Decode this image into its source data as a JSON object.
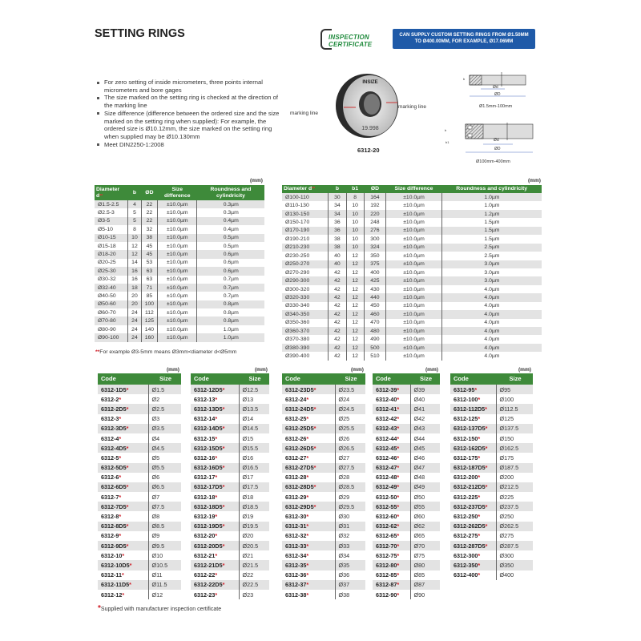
{
  "title": "SETTING RINGS",
  "certificate_logo": [
    "INSPECTION",
    "CERTIFICATE"
  ],
  "custom_notice": [
    "CAN SUPPLY CUSTOM SETTING RINGS FROM Ø1.50MM",
    "TO Ø400.00MM, FOR EXAMPLE, Ø17.06MM"
  ],
  "bullets": [
    "For zero setting of inside micrometers, three points internal micrometers and bore gages",
    "The size marked on the setting ring is checked at the direction of the marking line",
    "Size difference (difference between the ordered size and the size marked on the setting ring when supplied): For example, the ordered size is Ø10.12mm, the size marked on the setting ring when supplied may be Ø10.130mm",
    "Meet DIN2250-1:2008"
  ],
  "product": {
    "brand": "INSIZE",
    "marking": "19.998",
    "marking_line": "marking line",
    "code": "6312-20"
  },
  "diagrams": [
    {
      "caption": "Ø1.5mm-100mm",
      "d": "Ød",
      "D": "ØD",
      "b": "b"
    },
    {
      "caption": "Ø100mm-400mm",
      "d": "Ød",
      "D": "ØD",
      "b": "b",
      "b1": "b1"
    }
  ],
  "unit": "(mm)",
  "accent_colors": {
    "header_green": "#3e8a3a",
    "notice_blue": "#1f5aa8",
    "star_red": "#d0202a"
  },
  "spec_table_small": {
    "headers": [
      "Diameter d",
      "b",
      "ØD",
      "Size difference",
      "Roundness and cylindricity"
    ],
    "header_mark": "**",
    "rows": [
      [
        "Ø1.5-2.5",
        "4",
        "22",
        "±10.0µm",
        "0.3µm"
      ],
      [
        "Ø2.5-3",
        "5",
        "22",
        "±10.0µm",
        "0.3µm"
      ],
      [
        "Ø3-5",
        "5",
        "22",
        "±10.0µm",
        "0.4µm"
      ],
      [
        "Ø5-10",
        "8",
        "32",
        "±10.0µm",
        "0.4µm"
      ],
      [
        "Ø10-15",
        "10",
        "38",
        "±10.0µm",
        "0.5µm"
      ],
      [
        "Ø15-18",
        "12",
        "45",
        "±10.0µm",
        "0.5µm"
      ],
      [
        "Ø18-20",
        "12",
        "45",
        "±10.0µm",
        "0.6µm"
      ],
      [
        "Ø20-25",
        "14",
        "53",
        "±10.0µm",
        "0.6µm"
      ],
      [
        "Ø25-30",
        "16",
        "63",
        "±10.0µm",
        "0.6µm"
      ],
      [
        "Ø30-32",
        "16",
        "63",
        "±10.0µm",
        "0.7µm"
      ],
      [
        "Ø32-40",
        "18",
        "71",
        "±10.0µm",
        "0.7µm"
      ],
      [
        "Ø40-50",
        "20",
        "85",
        "±10.0µm",
        "0.7µm"
      ],
      [
        "Ø50-60",
        "20",
        "100",
        "±10.0µm",
        "0.8µm"
      ],
      [
        "Ø60-70",
        "24",
        "112",
        "±10.0µm",
        "0.8µm"
      ],
      [
        "Ø70-80",
        "24",
        "125",
        "±10.0µm",
        "0.8µm"
      ],
      [
        "Ø80-90",
        "24",
        "140",
        "±10.0µm",
        "1.0µm"
      ],
      [
        "Ø90-100",
        "24",
        "160",
        "±10.0µm",
        "1.0µm"
      ]
    ],
    "footnote_mark": "**",
    "footnote": "For example Ø3-5mm means Ø3mm<diameter d<Ø5mm"
  },
  "spec_table_large": {
    "headers": [
      "Diameter d",
      "b",
      "b1",
      "ØD",
      "Size difference",
      "Roundness and cylindricity"
    ],
    "header_mark": "**",
    "rows": [
      [
        "Ø100-110",
        "30",
        "8",
        "164",
        "±10.0µm",
        "1.0µm"
      ],
      [
        "Ø110-130",
        "34",
        "10",
        "192",
        "±10.0µm",
        "1.0µm"
      ],
      [
        "Ø130-150",
        "34",
        "10",
        "220",
        "±10.0µm",
        "1.2µm"
      ],
      [
        "Ø150-170",
        "36",
        "10",
        "248",
        "±10.0µm",
        "1.5µm"
      ],
      [
        "Ø170-190",
        "36",
        "10",
        "276",
        "±10.0µm",
        "1.5µm"
      ],
      [
        "Ø190-210",
        "38",
        "10",
        "300",
        "±10.0µm",
        "1.5µm"
      ],
      [
        "Ø210-230",
        "38",
        "10",
        "324",
        "±10.0µm",
        "2.5µm"
      ],
      [
        "Ø230-250",
        "40",
        "12",
        "350",
        "±10.0µm",
        "2.5µm"
      ],
      [
        "Ø250-270",
        "40",
        "12",
        "375",
        "±10.0µm",
        "3.0µm"
      ],
      [
        "Ø270-290",
        "42",
        "12",
        "400",
        "±10.0µm",
        "3.0µm"
      ],
      [
        "Ø290-300",
        "42",
        "12",
        "425",
        "±10.0µm",
        "3.0µm"
      ],
      [
        "Ø300-320",
        "42",
        "12",
        "430",
        "±10.0µm",
        "4.0µm"
      ],
      [
        "Ø320-330",
        "42",
        "12",
        "440",
        "±10.0µm",
        "4.0µm"
      ],
      [
        "Ø330-340",
        "42",
        "12",
        "450",
        "±10.0µm",
        "4.0µm"
      ],
      [
        "Ø340-350",
        "42",
        "12",
        "460",
        "±10.0µm",
        "4.0µm"
      ],
      [
        "Ø350-360",
        "42",
        "12",
        "470",
        "±10.0µm",
        "4.0µm"
      ],
      [
        "Ø360-370",
        "42",
        "12",
        "480",
        "±10.0µm",
        "4.0µm"
      ],
      [
        "Ø370-380",
        "42",
        "12",
        "490",
        "±10.0µm",
        "4.0µm"
      ],
      [
        "Ø380-390",
        "42",
        "12",
        "500",
        "±10.0µm",
        "4.0µm"
      ],
      [
        "Ø390-400",
        "42",
        "12",
        "510",
        "±10.0µm",
        "4.0µm"
      ]
    ]
  },
  "code_tables": {
    "headers": [
      "Code",
      "Size"
    ],
    "star": "*",
    "tables": [
      [
        [
          "6312-1D5",
          "Ø1.5"
        ],
        [
          "6312-2",
          "Ø2"
        ],
        [
          "6312-2D5",
          "Ø2.5"
        ],
        [
          "6312-3",
          "Ø3"
        ],
        [
          "6312-3D5",
          "Ø3.5"
        ],
        [
          "6312-4",
          "Ø4"
        ],
        [
          "6312-4D5",
          "Ø4.5"
        ],
        [
          "6312-5",
          "Ø5"
        ],
        [
          "6312-5D5",
          "Ø5.5"
        ],
        [
          "6312-6",
          "Ø6"
        ],
        [
          "6312-6D5",
          "Ø6.5"
        ],
        [
          "6312-7",
          "Ø7"
        ],
        [
          "6312-7D5",
          "Ø7.5"
        ],
        [
          "6312-8",
          "Ø8"
        ],
        [
          "6312-8D5",
          "Ø8.5"
        ],
        [
          "6312-9",
          "Ø9"
        ],
        [
          "6312-9D5",
          "Ø9.5"
        ],
        [
          "6312-10",
          "Ø10"
        ],
        [
          "6312-10D5",
          "Ø10.5"
        ],
        [
          "6312-11",
          "Ø11"
        ],
        [
          "6312-11D5",
          "Ø11.5"
        ],
        [
          "6312-12",
          "Ø12"
        ]
      ],
      [
        [
          "6312-12D5",
          "Ø12.5"
        ],
        [
          "6312-13",
          "Ø13"
        ],
        [
          "6312-13D5",
          "Ø13.5"
        ],
        [
          "6312-14",
          "Ø14"
        ],
        [
          "6312-14D5",
          "Ø14.5"
        ],
        [
          "6312-15",
          "Ø15"
        ],
        [
          "6312-15D5",
          "Ø15.5"
        ],
        [
          "6312-16",
          "Ø16"
        ],
        [
          "6312-16D5",
          "Ø16.5"
        ],
        [
          "6312-17",
          "Ø17"
        ],
        [
          "6312-17D5",
          "Ø17.5"
        ],
        [
          "6312-18",
          "Ø18"
        ],
        [
          "6312-18D5",
          "Ø18.5"
        ],
        [
          "6312-19",
          "Ø19"
        ],
        [
          "6312-19D5",
          "Ø19.5"
        ],
        [
          "6312-20",
          "Ø20"
        ],
        [
          "6312-20D5",
          "Ø20.5"
        ],
        [
          "6312-21",
          "Ø21"
        ],
        [
          "6312-21D5",
          "Ø21.5"
        ],
        [
          "6312-22",
          "Ø22"
        ],
        [
          "6312-22D5",
          "Ø22.5"
        ],
        [
          "6312-23",
          "Ø23"
        ]
      ],
      [
        [
          "6312-23D5",
          "Ø23.5"
        ],
        [
          "6312-24",
          "Ø24"
        ],
        [
          "6312-24D5",
          "Ø24.5"
        ],
        [
          "6312-25",
          "Ø25"
        ],
        [
          "6312-25D5",
          "Ø25.5"
        ],
        [
          "6312-26",
          "Ø26"
        ],
        [
          "6312-26D5",
          "Ø26.5"
        ],
        [
          "6312-27",
          "Ø27"
        ],
        [
          "6312-27D5",
          "Ø27.5"
        ],
        [
          "6312-28",
          "Ø28"
        ],
        [
          "6312-28D5",
          "Ø28.5"
        ],
        [
          "6312-29",
          "Ø29"
        ],
        [
          "6312-29D5",
          "Ø29.5"
        ],
        [
          "6312-30",
          "Ø30"
        ],
        [
          "6312-31",
          "Ø31"
        ],
        [
          "6312-32",
          "Ø32"
        ],
        [
          "6312-33",
          "Ø33"
        ],
        [
          "6312-34",
          "Ø34"
        ],
        [
          "6312-35",
          "Ø35"
        ],
        [
          "6312-36",
          "Ø36"
        ],
        [
          "6312-37",
          "Ø37"
        ],
        [
          "6312-38",
          "Ø38"
        ]
      ],
      [
        [
          "6312-39",
          "Ø39"
        ],
        [
          "6312-40",
          "Ø40"
        ],
        [
          "6312-41",
          "Ø41"
        ],
        [
          "6312-42",
          "Ø42"
        ],
        [
          "6312-43",
          "Ø43"
        ],
        [
          "6312-44",
          "Ø44"
        ],
        [
          "6312-45",
          "Ø45"
        ],
        [
          "6312-46",
          "Ø46"
        ],
        [
          "6312-47",
          "Ø47"
        ],
        [
          "6312-48",
          "Ø48"
        ],
        [
          "6312-49",
          "Ø49"
        ],
        [
          "6312-50",
          "Ø50"
        ],
        [
          "6312-55",
          "Ø55"
        ],
        [
          "6312-60",
          "Ø60"
        ],
        [
          "6312-62",
          "Ø62"
        ],
        [
          "6312-65",
          "Ø65"
        ],
        [
          "6312-70",
          "Ø70"
        ],
        [
          "6312-75",
          "Ø75"
        ],
        [
          "6312-80",
          "Ø80"
        ],
        [
          "6312-85",
          "Ø85"
        ],
        [
          "6312-87",
          "Ø87"
        ],
        [
          "6312-90",
          "Ø90"
        ]
      ],
      [
        [
          "6312-95",
          "Ø95"
        ],
        [
          "6312-100",
          "Ø100"
        ],
        [
          "6312-112D5",
          "Ø112.5"
        ],
        [
          "6312-125",
          "Ø125"
        ],
        [
          "6312-137D5",
          "Ø137.5"
        ],
        [
          "6312-150",
          "Ø150"
        ],
        [
          "6312-162D5",
          "Ø162.5"
        ],
        [
          "6312-175",
          "Ø175"
        ],
        [
          "6312-187D5",
          "Ø187.5"
        ],
        [
          "6312-200",
          "Ø200"
        ],
        [
          "6312-212D5",
          "Ø212.5"
        ],
        [
          "6312-225",
          "Ø225"
        ],
        [
          "6312-237D5",
          "Ø237.5"
        ],
        [
          "6312-250",
          "Ø250"
        ],
        [
          "6312-262D5",
          "Ø262.5"
        ],
        [
          "6312-275",
          "Ø275"
        ],
        [
          "6312-287D5",
          "Ø287.5"
        ],
        [
          "6312-300",
          "Ø300"
        ],
        [
          "6312-350",
          "Ø350"
        ],
        [
          "6312-400",
          "Ø400"
        ]
      ]
    ],
    "footnote_mark": "*",
    "footnote": "Supplied with manufacturer inspection certificate"
  }
}
